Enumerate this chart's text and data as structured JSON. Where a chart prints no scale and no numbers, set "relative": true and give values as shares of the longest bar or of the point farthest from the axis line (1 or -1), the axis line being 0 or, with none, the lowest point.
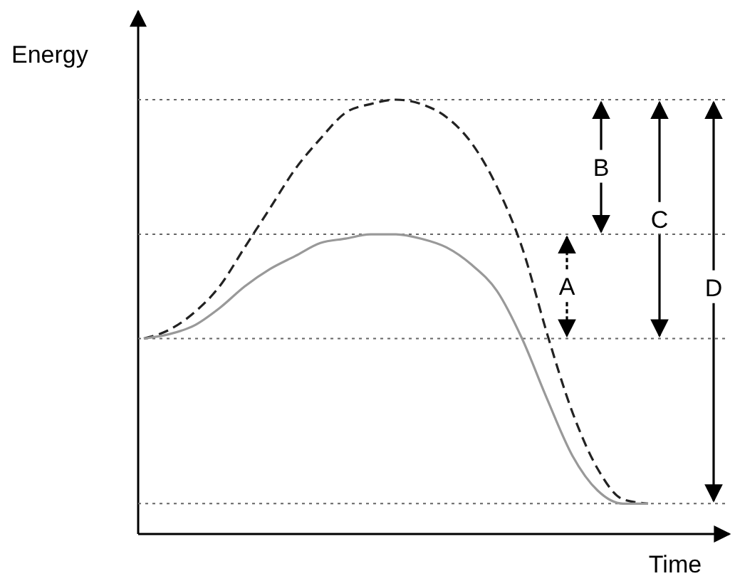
{
  "chart_data": {
    "type": "line",
    "relative": true,
    "xlabel": "Time",
    "ylabel": "Energy",
    "marker": "none",
    "categories": [
      null,
      null,
      null,
      null,
      null,
      null,
      null,
      null,
      null,
      null,
      null,
      null,
      null,
      null,
      null,
      null,
      null,
      null,
      null,
      null,
      null
    ],
    "series": [
      {
        "color": "#222222",
        "line_style": "dashed",
        "values": [
          0.45,
          0.47,
          0.51,
          0.57,
          0.66,
          0.75,
          0.84,
          0.91,
          0.97,
          0.99,
          1,
          0.99,
          0.96,
          0.9,
          0.8,
          0.66,
          0.46,
          0.28,
          0.15,
          0.08,
          0.07
        ]
      },
      {
        "color": "#999999",
        "line_style": "solid",
        "values": [
          0.45,
          0.46,
          0.48,
          0.52,
          0.57,
          0.61,
          0.64,
          0.67,
          0.68,
          0.69,
          0.69,
          0.68,
          0.66,
          0.62,
          0.56,
          0.45,
          0.31,
          0.18,
          0.1,
          0.07,
          0.07
        ]
      }
    ],
    "ref_lines": [
      {
        "axis": "y",
        "value": 1,
        "line_style": "dotted",
        "color": "#666666"
      },
      {
        "axis": "y",
        "value": 0.69,
        "line_style": "dotted",
        "color": "#666666"
      },
      {
        "axis": "y",
        "value": 0.45,
        "line_style": "dotted",
        "color": "#666666"
      },
      {
        "axis": "y",
        "value": 0.07,
        "line_style": "dotted",
        "color": "#666666"
      }
    ],
    "annotations": [
      "A",
      "B",
      "C",
      "D"
    ]
  }
}
